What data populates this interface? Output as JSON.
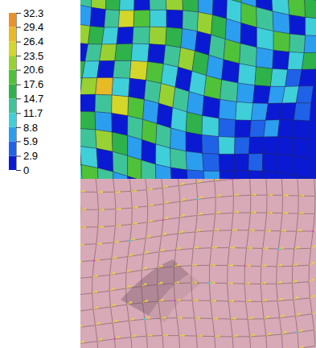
{
  "chart_data": {
    "type": "heatmap",
    "colorbar": {
      "range": [
        0,
        32.3
      ],
      "ticks": [
        0,
        2.9,
        5.9,
        8.8,
        11.7,
        14.7,
        17.6,
        20.6,
        23.5,
        26.4,
        29.4,
        32.3
      ]
    },
    "colors": [
      "#0a1ad2",
      "#1f62e8",
      "#2b9ef0",
      "#3fcfd8",
      "#3fc49a",
      "#2fb24a",
      "#4fc23a",
      "#98d232",
      "#d4d62a",
      "#e8bb26",
      "#e8922a"
    ],
    "values": [
      [
        22,
        12,
        2,
        13,
        24,
        18,
        9,
        1,
        11,
        20,
        15,
        8,
        2,
        10,
        19,
        15
      ],
      [
        12,
        23,
        17,
        9,
        1,
        12,
        21,
        15,
        8,
        1,
        10,
        19,
        14,
        8,
        2,
        10
      ],
      [
        8,
        1,
        13,
        24,
        18,
        9,
        1,
        12,
        21,
        15,
        8,
        1,
        10,
        18,
        13,
        6
      ],
      [
        21,
        17,
        9,
        1,
        13,
        22,
        16,
        8,
        1,
        12,
        19,
        14,
        7,
        1,
        9,
        15
      ],
      [
        2,
        12,
        22,
        17,
        9,
        1,
        13,
        21,
        15,
        7,
        1,
        9,
        16,
        11,
        5,
        1
      ],
      [
        17,
        9,
        1,
        13,
        25,
        18,
        9,
        1,
        11,
        18,
        12,
        6,
        1,
        6,
        10,
        4
      ],
      [
        12,
        22,
        27,
        10,
        2,
        13,
        21,
        14,
        6,
        1,
        7,
        11,
        6,
        2,
        1,
        3
      ],
      [
        9,
        2,
        14,
        26,
        19,
        8,
        1,
        10,
        16,
        9,
        3,
        1,
        4,
        6,
        2,
        1
      ],
      [
        22,
        16,
        8,
        1,
        12,
        19,
        13,
        6,
        1,
        5,
        9,
        4,
        1,
        0,
        2,
        1
      ],
      [
        1,
        12,
        21,
        15,
        8,
        1,
        9,
        14,
        8,
        3,
        0,
        2,
        3,
        1,
        0,
        0
      ],
      [
        17,
        9,
        1,
        12,
        19,
        13,
        6,
        1,
        5,
        8,
        2,
        0,
        1,
        0,
        0,
        1
      ],
      [
        11,
        20,
        14,
        7,
        1,
        8,
        13,
        6,
        1,
        2,
        0,
        1,
        0,
        0,
        0,
        0
      ]
    ]
  }
}
